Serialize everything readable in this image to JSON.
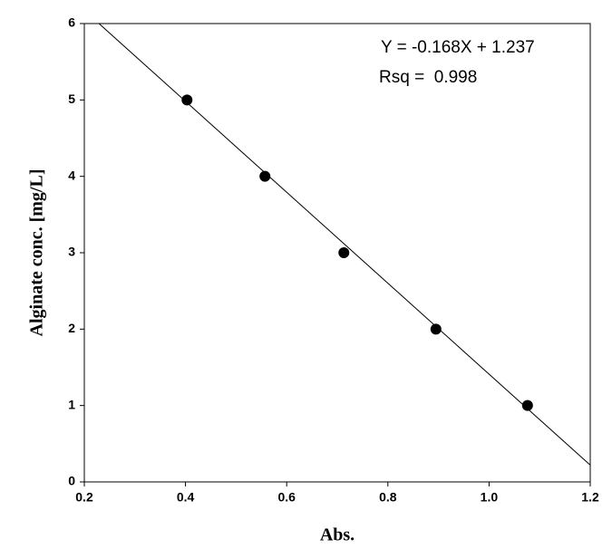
{
  "chart_data": {
    "type": "scatter",
    "x_label": "Abs.",
    "y_label": "Alginate conc. [mg/L]",
    "annotations": [
      "Y = -0.168X + 1.237",
      "Rsq =  0.998"
    ],
    "series": [
      {
        "color": "#000000",
        "x": [
          0.403,
          0.557,
          0.713,
          0.895,
          1.076
        ],
        "values": [
          5,
          4,
          3,
          2,
          1
        ]
      }
    ],
    "fit_line": {
      "slope": -0.168,
      "intercept": 1.237,
      "color": "#000000"
    },
    "xlim": [
      0.2,
      1.2
    ],
    "xticks": [
      0.2,
      0.4,
      0.6,
      0.8,
      {
        "value": 1,
        "label": "1.0"
      },
      1.2
    ],
    "ylim": [
      0,
      6
    ],
    "yticks": [
      0,
      1,
      2,
      3,
      4,
      5,
      6
    ]
  }
}
